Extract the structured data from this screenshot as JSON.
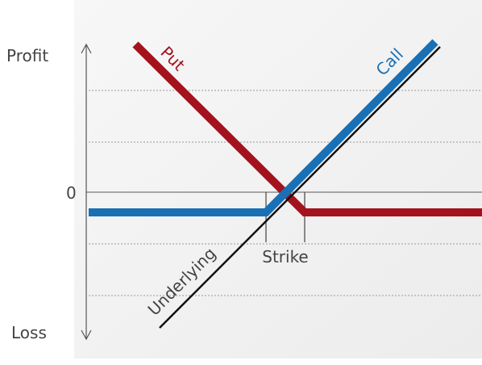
{
  "axis": {
    "top": "Profit",
    "zero": "0",
    "bottom": "Loss"
  },
  "labels": {
    "put": "Put",
    "call": "Call",
    "underlying": "Underlying",
    "strike": "Strike"
  }
}
